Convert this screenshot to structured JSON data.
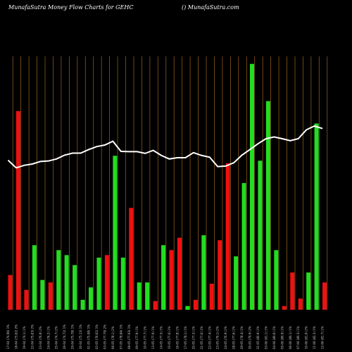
{
  "header": {
    "title": "MunafaSutra  Money Flow  Charts for GEHC",
    "site": "() MunafaSutra.com"
  },
  "colors": {
    "background": "#000000",
    "grid": "#8a5a1a",
    "up": "#22dd22",
    "down": "#ee1111",
    "line": "#ffffff"
  },
  "chart_data": {
    "type": "bar",
    "title": "MunafaSutra  Money Flow  Charts for GEHC",
    "grid": true,
    "categories": [
      "17-04-2024",
      "18-04-2024",
      "19-04-2024",
      "22-04-2024",
      "23-04-2024",
      "24-04-2024",
      "25-04-2024",
      "26-04-2024",
      "29-04-2024",
      "30-04-2024",
      "01-05-2024",
      "02-05-2024",
      "03-05-2024",
      "06-05-2024",
      "07-05-2024",
      "08-05-2024",
      "09-05-2024",
      "10-05-2024",
      "13-05-2024",
      "14-05-2024",
      "15-05-2024",
      "16-05-2024",
      "17-05-2024",
      "20-05-2024",
      "21-05-2024",
      "22-05-2024",
      "23-05-2024",
      "24-05-2024",
      "28-05-2024",
      "29-05-2024",
      "30-05-2024",
      "31-05-2024",
      "03-06-2024",
      "04-06-2024",
      "05-06-2024",
      "06-06-2024",
      "07-06-2024",
      "10-06-2024",
      "11-06-2024",
      "12-06-2024"
    ],
    "tick_labels": [
      "17-04 (74.96) 1%",
      "18-04 (73.62) 2%",
      "19-04 (74.1) 1%",
      "22-04 (75.63) 2%",
      "23-04 (76.8) 2%",
      "24-04 (76.2) 1%",
      "25-04 (74.7) 2%",
      "26-04 (74.72) 1%",
      "29-04 (75.78) 1%",
      "30-04 (75.13) 1%",
      "01-05 (75.98) 1%",
      "02-05 (76.62) 1%",
      "03-05 (77.79) 2%",
      "06-05 (78.1) 2%",
      "07-05 (78.84) 1%",
      "08-05 (77.93) 1%",
      "09-05 (77.9) 1%",
      "10-05 (77.7) 1%",
      "13-05 (77.9) 1%",
      "14-05 (77.5) 1%",
      "15-05 (77.6) 1%",
      "16-05 (77.8) 1%",
      "17-05 (78.1) 1%",
      "20-05 (77.3) 1%",
      "21-05 (77.6) 1%",
      "22-05 (77.4) 1%",
      "23-05 (76.1) 2%",
      "24-05 (76.9) 1%",
      "28-05 (77.6) 1%",
      "29-05 (78.4) 1%",
      "30-05 (79.9) 2%",
      "31-05 (80.9) 1%",
      "03-06 (81.1) 1%",
      "04-06 (80.6) 1%",
      "05-06 (80.9) 1%",
      "06-06 (80.1) 1%",
      "07-06 (80.3) 1%",
      "10-06 (81.9) 2%",
      "11-06 (82.3) 1%",
      "12-06 (81.7) 1%"
    ],
    "bars": [
      {
        "value": 14,
        "direction": "down"
      },
      {
        "value": 80,
        "direction": "down"
      },
      {
        "value": 8,
        "direction": "down"
      },
      {
        "value": 26,
        "direction": "up"
      },
      {
        "value": 12,
        "direction": "up"
      },
      {
        "value": 11,
        "direction": "down"
      },
      {
        "value": 24,
        "direction": "up"
      },
      {
        "value": 22,
        "direction": "up"
      },
      {
        "value": 18,
        "direction": "up"
      },
      {
        "value": 4,
        "direction": "up"
      },
      {
        "value": 9,
        "direction": "up"
      },
      {
        "value": 21,
        "direction": "up"
      },
      {
        "value": 22,
        "direction": "down"
      },
      {
        "value": 62,
        "direction": "up"
      },
      {
        "value": 21,
        "direction": "up"
      },
      {
        "value": 41,
        "direction": "down"
      },
      {
        "value": 11,
        "direction": "up"
      },
      {
        "value": 11,
        "direction": "up"
      },
      {
        "value": 3.5,
        "direction": "down"
      },
      {
        "value": 26,
        "direction": "up"
      },
      {
        "value": 24,
        "direction": "down"
      },
      {
        "value": 29,
        "direction": "down"
      },
      {
        "value": 1.5,
        "direction": "up"
      },
      {
        "value": 4,
        "direction": "down"
      },
      {
        "value": 30,
        "direction": "up"
      },
      {
        "value": 10.5,
        "direction": "down"
      },
      {
        "value": 28,
        "direction": "down"
      },
      {
        "value": 59,
        "direction": "down"
      },
      {
        "value": 21.5,
        "direction": "up"
      },
      {
        "value": 51,
        "direction": "up"
      },
      {
        "value": 99,
        "direction": "up"
      },
      {
        "value": 60,
        "direction": "up"
      },
      {
        "value": 84,
        "direction": "up"
      },
      {
        "value": 24,
        "direction": "up"
      },
      {
        "value": 1.5,
        "direction": "down"
      },
      {
        "value": 15,
        "direction": "down"
      },
      {
        "value": 4.5,
        "direction": "down"
      },
      {
        "value": 15,
        "direction": "up"
      },
      {
        "value": 75,
        "direction": "up"
      },
      {
        "value": 11,
        "direction": "down"
      }
    ],
    "ylim": [
      0,
      100
    ],
    "line": {
      "values": [
        59,
        56,
        57,
        57.5,
        58.5,
        58.7,
        59.5,
        61,
        61.8,
        61.8,
        63.2,
        64.4,
        65,
        66.5,
        62.5,
        62.4,
        62.4,
        61.7,
        62.9,
        60.9,
        59.5,
        60,
        60,
        62,
        60.9,
        60.2,
        56.5,
        56.7,
        58,
        61,
        63.2,
        65.5,
        67.5,
        68.2,
        67.5,
        66.7,
        67.5,
        71,
        72.5,
        71.5
      ],
      "ylim": [
        0,
        100
      ]
    }
  }
}
